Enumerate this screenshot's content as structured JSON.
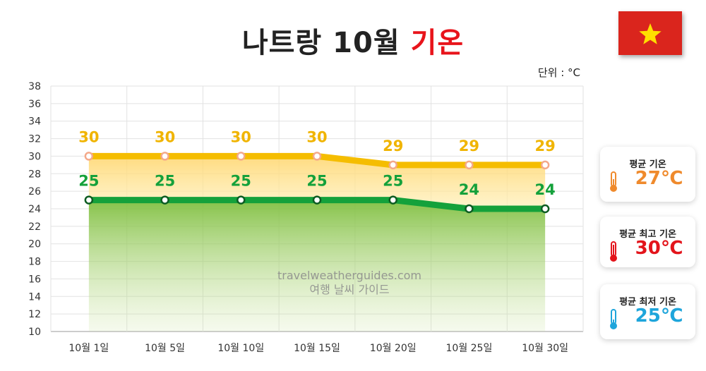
{
  "title": {
    "main": "나트랑 10월",
    "accent": "기온"
  },
  "unit_label": "단위 : °C",
  "flag_icon": "vietnam-flag",
  "cards": [
    {
      "label": "평균 기온",
      "value": "27℃",
      "color": "#ef8a2c",
      "icon": "thermometer-orange-icon"
    },
    {
      "label": "평균 최고 기온",
      "value": "30℃",
      "color": "#e3141b",
      "icon": "thermometer-red-icon"
    },
    {
      "label": "평균 최저 기온",
      "value": "25℃",
      "color": "#1ea5db",
      "icon": "thermometer-blue-icon"
    }
  ],
  "chart_data": {
    "type": "line",
    "categories": [
      "10월 1일",
      "10월 5일",
      "10월 10일",
      "10월 15일",
      "10월 20일",
      "10월 25일",
      "10월 30일"
    ],
    "series": [
      {
        "values": [
          30,
          30,
          30,
          30,
          29,
          29,
          29
        ],
        "color": "#f5bd00",
        "label_color": "#f0b400"
      },
      {
        "values": [
          25,
          25,
          25,
          25,
          25,
          24,
          24
        ],
        "color": "#14a13b",
        "label_color": "#14a13b"
      }
    ],
    "yticks": [
      10,
      12,
      14,
      16,
      18,
      20,
      22,
      24,
      26,
      28,
      30,
      32,
      34,
      36,
      38
    ],
    "ylim": [
      10,
      38
    ],
    "grid": true,
    "watermark": [
      "travelweatherguides.com",
      "여행 날씨 가이드"
    ]
  }
}
